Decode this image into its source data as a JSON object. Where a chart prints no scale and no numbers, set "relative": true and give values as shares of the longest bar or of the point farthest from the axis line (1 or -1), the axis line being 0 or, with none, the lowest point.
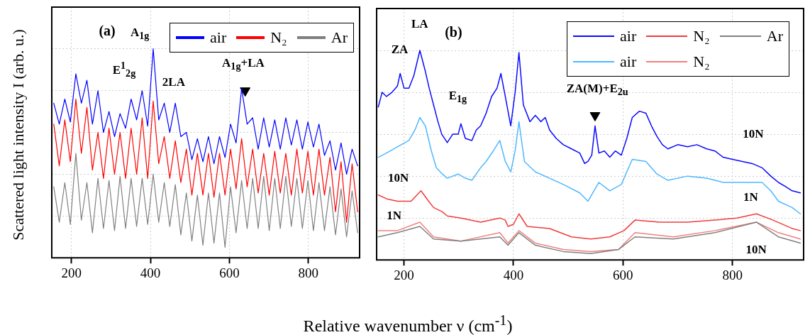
{
  "chart_data": [
    {
      "type": "line",
      "title": "(a)",
      "xlabel": "Relative wavenumber ν (cm$^{-1}$)",
      "ylabel": "Scattered light intensity I (arb. u.)",
      "relative": true,
      "grid": true,
      "legend": "top right",
      "xlim": [
        150,
        930
      ],
      "xticks": [
        200,
        400,
        600,
        800
      ],
      "series": [
        {
          "name": "air",
          "color": "#0000ff",
          "x": [
            155,
            169,
            183,
            197,
            211,
            225,
            239,
            253,
            267,
            281,
            295,
            309,
            323,
            337,
            351,
            365,
            379,
            393,
            407,
            421,
            435,
            449,
            463,
            477,
            491,
            505,
            519,
            533,
            547,
            561,
            575,
            589,
            603,
            617,
            631,
            645,
            659,
            673,
            687,
            701,
            715,
            729,
            743,
            757,
            771,
            785,
            799,
            813,
            827,
            841,
            855,
            869,
            883,
            897,
            911,
            925
          ],
          "values": [
            0.74,
            0.64,
            0.76,
            0.65,
            0.88,
            0.74,
            0.85,
            0.64,
            0.8,
            0.6,
            0.7,
            0.58,
            0.69,
            0.62,
            0.76,
            0.66,
            0.8,
            0.63,
            1.0,
            0.66,
            0.74,
            0.6,
            0.74,
            0.58,
            0.6,
            0.47,
            0.57,
            0.46,
            0.58,
            0.45,
            0.58,
            0.48,
            0.64,
            0.55,
            0.81,
            0.64,
            0.67,
            0.52,
            0.67,
            0.53,
            0.66,
            0.52,
            0.67,
            0.54,
            0.66,
            0.52,
            0.65,
            0.53,
            0.64,
            0.49,
            0.56,
            0.42,
            0.55,
            0.4,
            0.52,
            0.44
          ]
        },
        {
          "name": "N₂",
          "color": "#ff0000",
          "x": [
            155,
            169,
            183,
            197,
            211,
            225,
            239,
            253,
            267,
            281,
            295,
            309,
            323,
            337,
            351,
            365,
            379,
            393,
            407,
            421,
            435,
            449,
            463,
            477,
            491,
            505,
            519,
            533,
            547,
            561,
            575,
            589,
            603,
            617,
            631,
            645,
            659,
            673,
            687,
            701,
            715,
            729,
            743,
            757,
            771,
            785,
            799,
            813,
            827,
            841,
            855,
            869,
            883,
            897,
            911,
            925
          ],
          "values": [
            0.64,
            0.44,
            0.66,
            0.46,
            0.76,
            0.5,
            0.72,
            0.42,
            0.6,
            0.38,
            0.62,
            0.4,
            0.6,
            0.38,
            0.62,
            0.4,
            0.67,
            0.38,
            0.75,
            0.45,
            0.58,
            0.38,
            0.56,
            0.36,
            0.52,
            0.3,
            0.5,
            0.3,
            0.5,
            0.29,
            0.5,
            0.3,
            0.52,
            0.33,
            0.57,
            0.34,
            0.52,
            0.31,
            0.5,
            0.3,
            0.51,
            0.31,
            0.5,
            0.3,
            0.52,
            0.31,
            0.51,
            0.3,
            0.52,
            0.3,
            0.48,
            0.22,
            0.46,
            0.17,
            0.45,
            0.22
          ]
        },
        {
          "name": "Ar",
          "color": "#808080",
          "x": [
            155,
            169,
            183,
            197,
            211,
            225,
            239,
            253,
            267,
            281,
            295,
            309,
            323,
            337,
            351,
            365,
            379,
            393,
            407,
            421,
            435,
            449,
            463,
            477,
            491,
            505,
            519,
            533,
            547,
            561,
            575,
            589,
            603,
            617,
            631,
            645,
            659,
            673,
            687,
            701,
            715,
            729,
            743,
            757,
            771,
            785,
            799,
            813,
            827,
            841,
            855,
            869,
            883,
            897,
            911,
            925
          ],
          "values": [
            0.34,
            0.17,
            0.36,
            0.16,
            0.5,
            0.18,
            0.36,
            0.12,
            0.38,
            0.14,
            0.37,
            0.13,
            0.39,
            0.14,
            0.38,
            0.15,
            0.38,
            0.16,
            0.4,
            0.17,
            0.36,
            0.15,
            0.35,
            0.11,
            0.31,
            0.08,
            0.3,
            0.06,
            0.31,
            0.07,
            0.31,
            0.05,
            0.34,
            0.12,
            0.37,
            0.14,
            0.38,
            0.14,
            0.39,
            0.13,
            0.38,
            0.14,
            0.39,
            0.15,
            0.38,
            0.14,
            0.37,
            0.13,
            0.36,
            0.13,
            0.34,
            0.11,
            0.33,
            0.1,
            0.32,
            0.12
          ]
        },
        {
          "type": "scatter",
          "marker": "triangle",
          "color": "#000000",
          "x": [
            640
          ],
          "values": [
            0.8
          ]
        }
      ],
      "annotations": [
        "A$_{1g}$",
        "E$^{1}$$_{2g}$",
        "2LA",
        "A$_{1g}$+LA"
      ]
    },
    {
      "type": "line",
      "title": "(b)",
      "relative": true,
      "grid": true,
      "legend": "top right",
      "xlim": [
        150,
        930
      ],
      "xticks": [
        200,
        400,
        600,
        800
      ],
      "series": [
        {
          "name": "air",
          "color": "#0a0aff",
          "x": [
            153,
            160,
            168,
            178,
            188,
            193,
            200,
            209,
            218,
            229,
            239,
            246,
            254,
            262,
            269,
            279,
            289,
            299,
            304,
            312,
            324,
            332,
            340,
            350,
            360,
            370,
            377,
            385,
            395,
            403,
            410,
            418,
            430,
            440,
            450,
            458,
            466,
            478,
            491,
            506,
            521,
            530,
            536,
            543,
            549,
            556,
            566,
            576,
            586,
            597,
            607,
            617,
            630,
            642,
            652,
            662,
            672,
            682,
            700,
            718,
            735,
            753,
            768,
            783,
            800,
            818,
            836,
            854,
            870,
            884,
            897,
            909,
            924
          ],
          "values": [
            0.73,
            0.8,
            0.78,
            0.8,
            0.83,
            0.89,
            0.82,
            0.82,
            0.88,
            1.0,
            0.9,
            0.82,
            0.74,
            0.66,
            0.6,
            0.56,
            0.6,
            0.6,
            0.65,
            0.58,
            0.57,
            0.62,
            0.64,
            0.7,
            0.78,
            0.82,
            0.89,
            0.78,
            0.64,
            0.8,
            0.99,
            0.74,
            0.66,
            0.69,
            0.66,
            0.68,
            0.62,
            0.58,
            0.55,
            0.53,
            0.51,
            0.46,
            0.47,
            0.5,
            0.64,
            0.51,
            0.52,
            0.49,
            0.52,
            0.5,
            0.58,
            0.68,
            0.71,
            0.7,
            0.64,
            0.59,
            0.55,
            0.53,
            0.55,
            0.54,
            0.55,
            0.53,
            0.52,
            0.49,
            0.48,
            0.47,
            0.46,
            0.44,
            0.4,
            0.37,
            0.35,
            0.33,
            0.32
          ]
        },
        {
          "name": "N₂",
          "color": "#f03c3c",
          "x": [
            153,
            170,
            188,
            213,
            231,
            245,
            254,
            270,
            279,
            304,
            340,
            375,
            385,
            390,
            400,
            410,
            425,
            466,
            506,
            541,
            576,
            602,
            622,
            667,
            718,
            768,
            808,
            844,
            874,
            909,
            924
          ],
          "values": [
            0.31,
            0.29,
            0.28,
            0.28,
            0.33,
            0.28,
            0.25,
            0.23,
            0.21,
            0.2,
            0.18,
            0.2,
            0.19,
            0.16,
            0.17,
            0.22,
            0.16,
            0.15,
            0.11,
            0.1,
            0.11,
            0.14,
            0.19,
            0.18,
            0.18,
            0.19,
            0.2,
            0.22,
            0.19,
            0.15,
            0.14
          ]
        },
        {
          "name": "Ar",
          "color": "#808080",
          "x": [
            153,
            188,
            229,
            254,
            304,
            375,
            390,
            410,
            440,
            491,
            541,
            592,
            622,
            692,
            768,
            844,
            884,
            924
          ],
          "values": [
            0.11,
            0.13,
            0.16,
            0.1,
            0.09,
            0.11,
            0.07,
            0.13,
            0.07,
            0.04,
            0.03,
            0.05,
            0.11,
            0.1,
            0.13,
            0.18,
            0.11,
            0.08
          ]
        },
        {
          "name": "air",
          "color": "#4db8ff",
          "x": [
            153,
            168,
            188,
            209,
            220,
            229,
            239,
            250,
            259,
            270,
            279,
            299,
            312,
            324,
            340,
            350,
            363,
            375,
            385,
            395,
            403,
            410,
            420,
            440,
            466,
            491,
            521,
            536,
            556,
            576,
            597,
            617,
            642,
            662,
            682,
            718,
            753,
            783,
            818,
            854,
            870,
            884,
            909,
            924
          ],
          "values": [
            0.49,
            0.51,
            0.54,
            0.57,
            0.62,
            0.68,
            0.64,
            0.52,
            0.44,
            0.41,
            0.39,
            0.41,
            0.39,
            0.38,
            0.44,
            0.47,
            0.52,
            0.57,
            0.47,
            0.42,
            0.52,
            0.66,
            0.47,
            0.42,
            0.39,
            0.36,
            0.32,
            0.28,
            0.37,
            0.33,
            0.36,
            0.48,
            0.47,
            0.41,
            0.38,
            0.4,
            0.39,
            0.37,
            0.37,
            0.37,
            0.33,
            0.28,
            0.25,
            0.22
          ]
        },
        {
          "name": "N₂",
          "color": "#f08080",
          "x": [
            153,
            188,
            229,
            254,
            304,
            375,
            390,
            410,
            440,
            491,
            541,
            592,
            622,
            692,
            768,
            844,
            884,
            924
          ],
          "values": [
            0.14,
            0.14,
            0.18,
            0.11,
            0.09,
            0.13,
            0.08,
            0.14,
            0.08,
            0.05,
            0.04,
            0.05,
            0.13,
            0.11,
            0.14,
            0.18,
            0.13,
            0.1
          ]
        },
        {
          "type": "scatter",
          "marker": "triangle",
          "color": "#000000",
          "x": [
            549
          ],
          "values": [
            0.69
          ]
        }
      ],
      "annotations": [
        "ZA",
        "LA",
        "E$_{1g}$",
        "ZA(M)+E$_{2u}$",
        "10N",
        "1N",
        "10N",
        "1N",
        "10N"
      ]
    }
  ]
}
